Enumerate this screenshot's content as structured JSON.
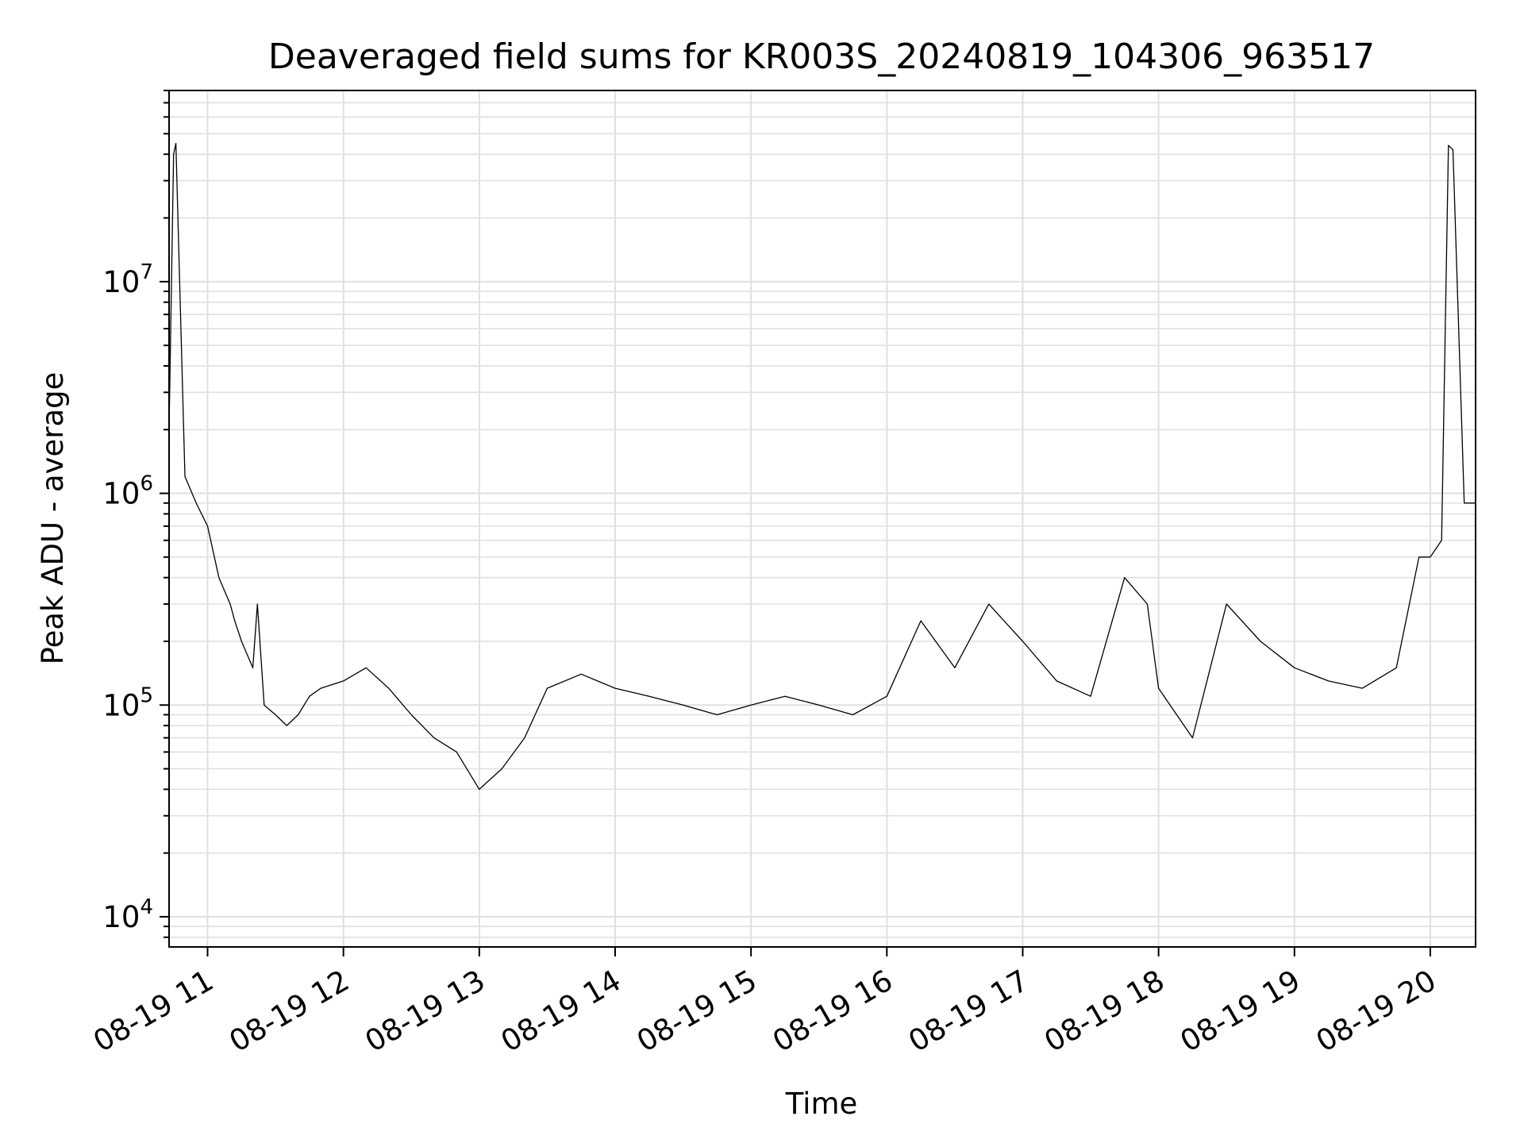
{
  "chart_data": {
    "type": "line",
    "title": "Deaveraged field sums for KR003S_20240819_104306_963517",
    "xlabel": "Time",
    "ylabel": "Peak ADU - average",
    "x_axis": {
      "kind": "datetime",
      "range": [
        "2024-08-19 10:43",
        "2024-08-19 20:20"
      ],
      "ticks": [
        {
          "value": "2024-08-19 11:00",
          "label": "08-19 11"
        },
        {
          "value": "2024-08-19 12:00",
          "label": "08-19 12"
        },
        {
          "value": "2024-08-19 13:00",
          "label": "08-19 13"
        },
        {
          "value": "2024-08-19 14:00",
          "label": "08-19 14"
        },
        {
          "value": "2024-08-19 15:00",
          "label": "08-19 15"
        },
        {
          "value": "2024-08-19 16:00",
          "label": "08-19 16"
        },
        {
          "value": "2024-08-19 17:00",
          "label": "08-19 17"
        },
        {
          "value": "2024-08-19 18:00",
          "label": "08-19 18"
        },
        {
          "value": "2024-08-19 19:00",
          "label": "08-19 19"
        },
        {
          "value": "2024-08-19 20:00",
          "label": "08-19 20"
        }
      ]
    },
    "y_axis": {
      "scale": "log",
      "range": [
        7200,
        80000000
      ],
      "ticks": [
        {
          "value": 10000,
          "base": "10",
          "exp": "4"
        },
        {
          "value": 100000,
          "base": "10",
          "exp": "5"
        },
        {
          "value": 1000000,
          "base": "10",
          "exp": "6"
        },
        {
          "value": 10000000,
          "base": "10",
          "exp": "7"
        }
      ]
    },
    "grid": true,
    "line_color": "#000000",
    "grid_color": "#e0e0e0",
    "series": [
      {
        "x": [
          "2024-08-19 10:43",
          "2024-08-19 10:45",
          "2024-08-19 10:46",
          "2024-08-19 10:50",
          "2024-08-19 10:55",
          "2024-08-19 11:00",
          "2024-08-19 11:05",
          "2024-08-19 11:10",
          "2024-08-19 11:12",
          "2024-08-19 11:15",
          "2024-08-19 11:20",
          "2024-08-19 11:22",
          "2024-08-19 11:25",
          "2024-08-19 11:30",
          "2024-08-19 11:35",
          "2024-08-19 11:40",
          "2024-08-19 11:45",
          "2024-08-19 11:50",
          "2024-08-19 12:00",
          "2024-08-19 12:10",
          "2024-08-19 12:20",
          "2024-08-19 12:30",
          "2024-08-19 12:40",
          "2024-08-19 12:50",
          "2024-08-19 13:00",
          "2024-08-19 13:10",
          "2024-08-19 13:20",
          "2024-08-19 13:30",
          "2024-08-19 13:45",
          "2024-08-19 14:00",
          "2024-08-19 14:15",
          "2024-08-19 14:30",
          "2024-08-19 14:45",
          "2024-08-19 15:00",
          "2024-08-19 15:15",
          "2024-08-19 15:30",
          "2024-08-19 15:45",
          "2024-08-19 16:00",
          "2024-08-19 16:15",
          "2024-08-19 16:30",
          "2024-08-19 16:45",
          "2024-08-19 17:00",
          "2024-08-19 17:15",
          "2024-08-19 17:30",
          "2024-08-19 17:45",
          "2024-08-19 17:55",
          "2024-08-19 18:00",
          "2024-08-19 18:15",
          "2024-08-19 18:30",
          "2024-08-19 18:45",
          "2024-08-19 19:00",
          "2024-08-19 19:15",
          "2024-08-19 19:30",
          "2024-08-19 19:45",
          "2024-08-19 19:55",
          "2024-08-19 20:00",
          "2024-08-19 20:05",
          "2024-08-19 20:08",
          "2024-08-19 20:10",
          "2024-08-19 20:15",
          "2024-08-19 20:20"
        ],
        "y": [
          2000000,
          40000000,
          45000000,
          1200000,
          900000,
          700000,
          400000,
          300000,
          250000,
          200000,
          150000,
          300000,
          100000,
          90000,
          80000,
          90000,
          110000,
          120000,
          130000,
          150000,
          120000,
          90000,
          70000,
          60000,
          40000,
          50000,
          70000,
          120000,
          140000,
          120000,
          110000,
          100000,
          90000,
          100000,
          110000,
          100000,
          90000,
          110000,
          250000,
          150000,
          300000,
          200000,
          130000,
          110000,
          400000,
          300000,
          120000,
          70000,
          300000,
          200000,
          150000,
          130000,
          120000,
          150000,
          500000,
          500000,
          600000,
          44000000,
          42000000,
          900000,
          900000
        ]
      }
    ]
  }
}
